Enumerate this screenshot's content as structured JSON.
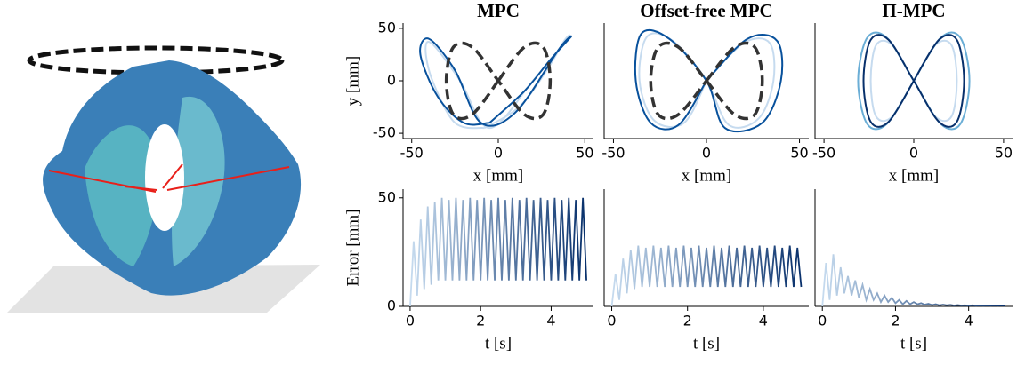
{
  "chart_data": [
    {
      "type": "line",
      "title": "MPC",
      "x_label": "x [mm]",
      "y_label": "y [mm]",
      "xlim": [
        -55,
        55
      ],
      "ylim": [
        -55,
        55
      ],
      "xticks": [
        -50,
        0,
        50
      ],
      "yticks": [
        -50,
        0,
        50
      ],
      "series": [
        {
          "color": "#c6dbef",
          "dash": false,
          "x": [
            -8,
            12,
            28,
            38,
            40,
            20,
            -5,
            -22,
            -38,
            -42,
            -38,
            -25,
            -8
          ],
          "values": [
            -45,
            -25,
            10,
            38,
            40,
            0,
            -45,
            0,
            35,
            30,
            0,
            -40,
            -45
          ]
        },
        {
          "color": "#08519c",
          "dash": false,
          "x": [
            -5,
            15,
            30,
            42,
            35,
            10,
            -10,
            -25,
            -40,
            -45,
            -35,
            -20,
            -5
          ],
          "values": [
            -40,
            -10,
            20,
            42,
            30,
            -30,
            -40,
            10,
            40,
            25,
            -15,
            -40,
            -40
          ]
        },
        {
          "color": "#333333",
          "dash": true,
          "x": [
            0,
            15,
            26,
            30,
            26,
            15,
            0,
            -15,
            -26,
            -30,
            -26,
            -15,
            0
          ],
          "values": [
            0,
            32,
            32,
            0,
            -32,
            -32,
            0,
            32,
            32,
            0,
            -32,
            -32,
            0
          ]
        }
      ]
    },
    {
      "type": "line",
      "title": "Offset-free MPC",
      "x_label": "x [mm]",
      "xlim": [
        -55,
        55
      ],
      "ylim": [
        -55,
        55
      ],
      "xticks": [
        -50,
        0,
        50
      ],
      "series": [
        {
          "color": "#c6dbef",
          "dash": false,
          "x": [
            0,
            20,
            34,
            36,
            28,
            12,
            0,
            -18,
            -32,
            -36,
            -28,
            -12,
            0
          ],
          "values": [
            0,
            36,
            36,
            0,
            -36,
            -42,
            0,
            38,
            42,
            0,
            -38,
            -40,
            0
          ]
        },
        {
          "color": "#08519c",
          "dash": false,
          "x": [
            0,
            22,
            38,
            40,
            30,
            10,
            0,
            -20,
            -35,
            -38,
            -30,
            -15,
            0
          ],
          "values": [
            0,
            40,
            38,
            0,
            -40,
            -45,
            0,
            40,
            45,
            0,
            -40,
            -42,
            0
          ]
        },
        {
          "color": "#333333",
          "dash": true,
          "x": [
            0,
            15,
            26,
            30,
            26,
            15,
            0,
            -15,
            -26,
            -30,
            -26,
            -15,
            0
          ],
          "values": [
            0,
            32,
            32,
            0,
            -32,
            -32,
            0,
            32,
            32,
            0,
            -32,
            -32,
            0
          ]
        }
      ]
    },
    {
      "type": "line",
      "title": "Π-MPC",
      "x_label": "x [mm]",
      "xlim": [
        -55,
        55
      ],
      "ylim": [
        -55,
        55
      ],
      "xticks": [
        -50,
        0,
        50
      ],
      "series": [
        {
          "color": "#c6dbef",
          "dash": false,
          "x": [
            0,
            12,
            21,
            24,
            21,
            12,
            0,
            -12,
            -21,
            -24,
            -21,
            -12,
            0
          ],
          "values": [
            0,
            34,
            34,
            0,
            -34,
            -34,
            0,
            34,
            34,
            0,
            -34,
            -34,
            0
          ]
        },
        {
          "color": "#6baed6",
          "dash": false,
          "x": [
            0,
            15,
            26,
            31,
            26,
            15,
            0,
            -15,
            -26,
            -31,
            -26,
            -15,
            0
          ],
          "values": [
            0,
            41,
            41,
            0,
            -41,
            -41,
            0,
            41,
            41,
            0,
            -41,
            -41,
            0
          ]
        },
        {
          "color": "#08306b",
          "dash": false,
          "x": [
            0,
            14,
            24,
            28,
            24,
            14,
            0,
            -14,
            -24,
            -28,
            -24,
            -14,
            0
          ],
          "values": [
            0,
            39,
            39,
            0,
            -39,
            -39,
            0,
            39,
            39,
            0,
            -39,
            -39,
            0
          ]
        }
      ]
    },
    {
      "type": "line",
      "x_label": "t [s]",
      "y_label": "Error [mm]",
      "xlim": [
        -0.2,
        5.2
      ],
      "ylim": [
        0,
        54
      ],
      "xticks": [
        0,
        2,
        4
      ],
      "yticks": [
        0,
        50
      ],
      "colors": [
        "#c6dbef",
        "#08306b"
      ],
      "x": [
        0,
        0.1,
        0.2,
        0.3,
        0.4,
        0.5,
        0.6,
        0.7,
        0.8,
        0.9,
        1,
        1.1,
        1.2,
        1.3,
        1.4,
        1.5,
        1.6,
        1.7,
        1.8,
        1.9,
        2,
        2.1,
        2.2,
        2.3,
        2.4,
        2.5,
        2.6,
        2.7,
        2.8,
        2.9,
        3,
        3.1,
        3.2,
        3.3,
        3.4,
        3.5,
        3.6,
        3.7,
        3.8,
        3.9,
        4,
        4.1,
        4.2,
        4.3,
        4.4,
        4.5,
        4.6,
        4.7,
        4.8,
        4.9,
        5
      ],
      "values": [
        0,
        30,
        5,
        40,
        8,
        46,
        10,
        48,
        12,
        50,
        12,
        49,
        12,
        50,
        12,
        49,
        12,
        50,
        12,
        49,
        12,
        50,
        12,
        49,
        12,
        50,
        12,
        49,
        12,
        50,
        12,
        49,
        12,
        50,
        12,
        49,
        12,
        50,
        12,
        49,
        12,
        50,
        12,
        49,
        12,
        50,
        12,
        49,
        12,
        50,
        12
      ]
    },
    {
      "type": "line",
      "x_label": "t [s]",
      "xlim": [
        -0.2,
        5.2
      ],
      "ylim": [
        0,
        54
      ],
      "xticks": [
        0,
        2,
        4
      ],
      "colors": [
        "#c6dbef",
        "#08306b"
      ],
      "x": [
        0,
        0.1,
        0.2,
        0.3,
        0.4,
        0.5,
        0.6,
        0.7,
        0.8,
        0.9,
        1,
        1.1,
        1.2,
        1.3,
        1.4,
        1.5,
        1.6,
        1.7,
        1.8,
        1.9,
        2,
        2.1,
        2.2,
        2.3,
        2.4,
        2.5,
        2.6,
        2.7,
        2.8,
        2.9,
        3,
        3.1,
        3.2,
        3.3,
        3.4,
        3.5,
        3.6,
        3.7,
        3.8,
        3.9,
        4,
        4.1,
        4.2,
        4.3,
        4.4,
        4.5,
        4.6,
        4.7,
        4.8,
        4.9,
        5
      ],
      "values": [
        0,
        15,
        3,
        22,
        6,
        26,
        8,
        28,
        9,
        27,
        9,
        28,
        9,
        27,
        9,
        28,
        9,
        27,
        9,
        28,
        9,
        27,
        9,
        28,
        9,
        27,
        9,
        28,
        9,
        27,
        9,
        28,
        9,
        27,
        9,
        28,
        9,
        27,
        9,
        28,
        9,
        27,
        9,
        28,
        9,
        27,
        9,
        28,
        9,
        27,
        9
      ]
    },
    {
      "type": "line",
      "x_label": "t [s]",
      "xlim": [
        -0.2,
        5.2
      ],
      "ylim": [
        0,
        54
      ],
      "xticks": [
        0,
        2,
        4
      ],
      "colors": [
        "#c6dbef",
        "#08306b"
      ],
      "x": [
        0,
        0.1,
        0.2,
        0.3,
        0.4,
        0.5,
        0.6,
        0.7,
        0.8,
        0.9,
        1,
        1.1,
        1.2,
        1.3,
        1.4,
        1.5,
        1.6,
        1.7,
        1.8,
        1.9,
        2,
        2.1,
        2.2,
        2.3,
        2.4,
        2.5,
        2.6,
        2.7,
        2.8,
        2.9,
        3,
        3.1,
        3.2,
        3.3,
        3.4,
        3.5,
        3.6,
        3.7,
        3.8,
        3.9,
        4,
        4.1,
        4.2,
        4.3,
        4.4,
        4.5,
        4.6,
        4.7,
        4.8,
        4.9,
        5
      ],
      "values": [
        0,
        20,
        3,
        24,
        5,
        18,
        6,
        14,
        5,
        12,
        4,
        10,
        3,
        8,
        3,
        6,
        2,
        5,
        2,
        4,
        1.5,
        3,
        1,
        2.5,
        1,
        2,
        1,
        1.5,
        0.8,
        1.2,
        0.6,
        1,
        0.5,
        0.8,
        0.5,
        0.7,
        0.4,
        0.6,
        0.4,
        0.5,
        0.3,
        0.5,
        0.3,
        0.4,
        0.3,
        0.4,
        0.3,
        0.4,
        0.3,
        0.4,
        0.3
      ]
    }
  ]
}
